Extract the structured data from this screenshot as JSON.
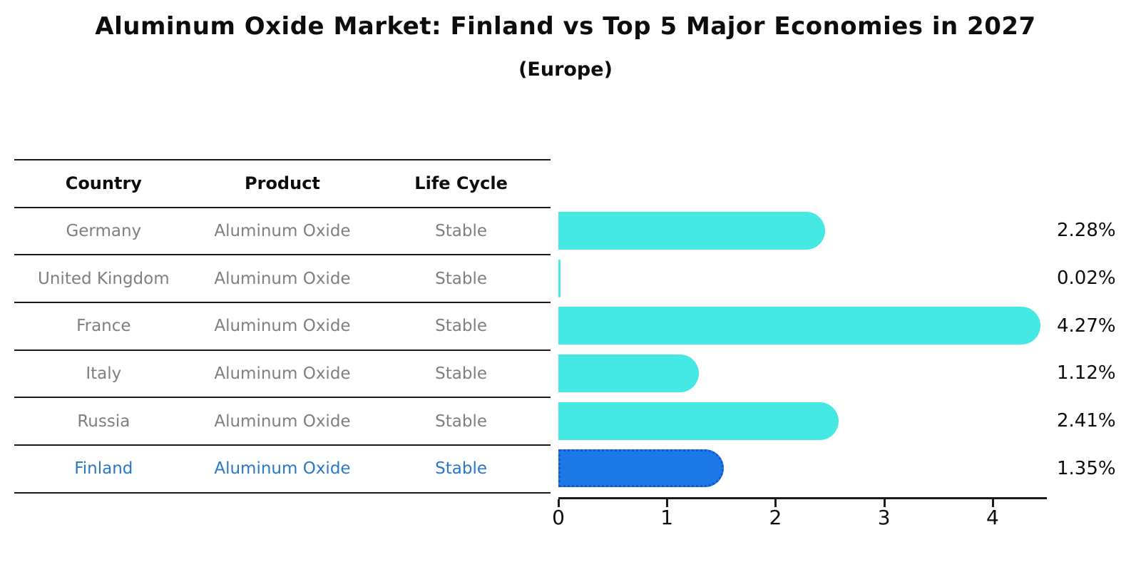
{
  "chart_data": {
    "type": "bar",
    "orientation": "horizontal",
    "title": "Aluminum Oxide Market: Finland vs Top 5 Major Economies in 2027",
    "subtitle": "(Europe)",
    "categories": [
      "Germany",
      "United Kingdom",
      "France",
      "Italy",
      "Russia",
      "Finland"
    ],
    "values": [
      2.28,
      0.02,
      4.27,
      1.12,
      2.41,
      1.35
    ],
    "value_labels": [
      "2.28%",
      "0.02%",
      "4.27%",
      "1.12%",
      "2.41%",
      "1.35%"
    ],
    "xlim": [
      0,
      4.5
    ],
    "x_ticks": [
      0,
      1,
      2,
      3,
      4
    ],
    "xlabel": "",
    "ylabel": "",
    "grid": false,
    "legend": false,
    "bar_color": "#45e8e3",
    "highlight_index": 5,
    "highlight_bar_color": "#1e79e8",
    "highlight_border_color": "#1257c4",
    "value_label_color": "#0d0d0d"
  },
  "table": {
    "headers": [
      "Country",
      "Product",
      "Life Cycle"
    ],
    "rows": [
      {
        "country": "Germany",
        "product": "Aluminum Oxide",
        "life_cycle": "Stable",
        "highlight": false
      },
      {
        "country": "United Kingdom",
        "product": "Aluminum Oxide",
        "life_cycle": "Stable",
        "highlight": false
      },
      {
        "country": "France",
        "product": "Aluminum Oxide",
        "life_cycle": "Stable",
        "highlight": false
      },
      {
        "country": "Italy",
        "product": "Aluminum Oxide",
        "life_cycle": "Stable",
        "highlight": false
      },
      {
        "country": "Russia",
        "product": "Aluminum Oxide",
        "life_cycle": "Stable",
        "highlight": false
      },
      {
        "country": "Finland",
        "product": "Aluminum Oxide",
        "life_cycle": "Stable",
        "highlight": true
      }
    ],
    "text_color": "#7f7f7f",
    "highlight_text_color": "#2878c8"
  }
}
